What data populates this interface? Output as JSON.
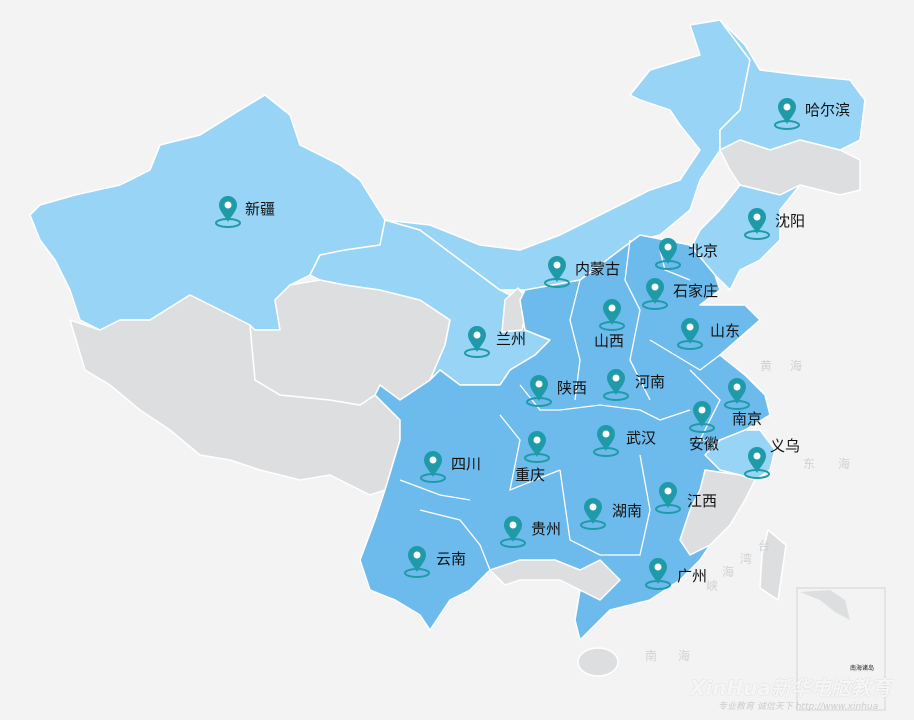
{
  "colors": {
    "background": "#f3f3f3",
    "highlight_dark": "#6dbbed",
    "highlight_light": "#98d4f5",
    "unhighlighted": "#dcdee0",
    "pin": "#1e9aa8",
    "border": "#ffffff"
  },
  "icon": "map-pin-icon",
  "cities": [
    {
      "name": "新疆"
    },
    {
      "name": "哈尔滨"
    },
    {
      "name": "沈阳"
    },
    {
      "name": "北京"
    },
    {
      "name": "内蒙古"
    },
    {
      "name": "石家庄"
    },
    {
      "name": "山西"
    },
    {
      "name": "山东"
    },
    {
      "name": "兰州"
    },
    {
      "name": "陕西"
    },
    {
      "name": "河南"
    },
    {
      "name": "南京"
    },
    {
      "name": "安徽"
    },
    {
      "name": "武汉"
    },
    {
      "name": "义乌"
    },
    {
      "name": "四川"
    },
    {
      "name": "重庆"
    },
    {
      "name": "江西"
    },
    {
      "name": "湖南"
    },
    {
      "name": "贵州"
    },
    {
      "name": "云南"
    },
    {
      "name": "广州"
    }
  ],
  "seas": [
    "黄",
    "海",
    "东",
    "海",
    "台",
    "湾",
    "海",
    "峡",
    "南",
    "海"
  ],
  "inset_label": "南海诸岛",
  "watermark": {
    "brand": "XinHua新华电脑教育",
    "slogan": "专业教育  诚信天下  http://www.xinhua"
  }
}
